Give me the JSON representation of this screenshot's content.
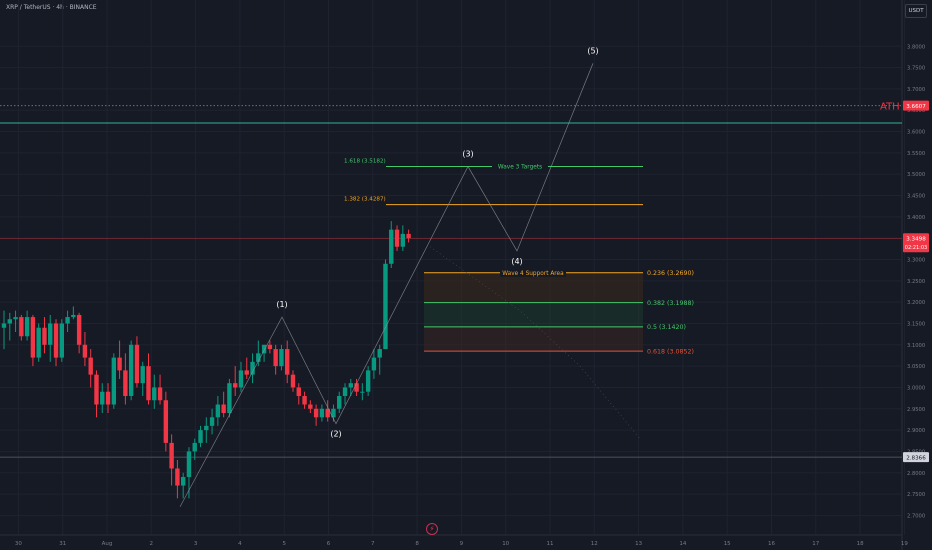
{
  "header": {
    "symbol_line": "XRP / TetherUS · 4h · BINANCE",
    "currency": "USDT"
  },
  "colors": {
    "background": "#161a25",
    "up": "#089981",
    "down": "#f23645",
    "green_line": "#43c96a",
    "orange_line": "#f5a623",
    "red_line": "#e0533a",
    "ath_line": "#2fb39a",
    "axis_text": "#787b86"
  },
  "chart_data": {
    "type": "candlestick",
    "ylim": [
      2.68,
      3.84
    ],
    "y_ticks": [
      "2.7000",
      "2.7500",
      "2.8000",
      "2.8500",
      "2.9000",
      "2.9500",
      "3.0000",
      "3.0500",
      "3.1000",
      "3.1500",
      "3.2000",
      "3.2500",
      "3.3000",
      "3.3500",
      "3.4000",
      "3.4500",
      "3.5000",
      "3.5500",
      "3.6000",
      "3.6500",
      "3.7000",
      "3.7500",
      "3.8000"
    ],
    "x_ticks": [
      "30",
      "31",
      "Aug",
      "2",
      "3",
      "4",
      "5",
      "6",
      "7",
      "8",
      "9",
      "10",
      "11",
      "12",
      "13",
      "14",
      "15",
      "16",
      "17",
      "18",
      "19"
    ],
    "candles": [
      {
        "o": 3.14,
        "h": 3.18,
        "l": 3.09,
        "c": 3.15
      },
      {
        "o": 3.15,
        "h": 3.175,
        "l": 3.11,
        "c": 3.16
      },
      {
        "o": 3.16,
        "h": 3.18,
        "l": 3.13,
        "c": 3.165
      },
      {
        "o": 3.165,
        "h": 3.17,
        "l": 3.11,
        "c": 3.12
      },
      {
        "o": 3.12,
        "h": 3.18,
        "l": 3.11,
        "c": 3.165
      },
      {
        "o": 3.165,
        "h": 3.17,
        "l": 3.05,
        "c": 3.07
      },
      {
        "o": 3.07,
        "h": 3.15,
        "l": 3.06,
        "c": 3.14
      },
      {
        "o": 3.14,
        "h": 3.165,
        "l": 3.08,
        "c": 3.1
      },
      {
        "o": 3.1,
        "h": 3.17,
        "l": 3.06,
        "c": 3.15
      },
      {
        "o": 3.15,
        "h": 3.16,
        "l": 3.05,
        "c": 3.07
      },
      {
        "o": 3.07,
        "h": 3.16,
        "l": 3.06,
        "c": 3.15
      },
      {
        "o": 3.15,
        "h": 3.18,
        "l": 3.13,
        "c": 3.165
      },
      {
        "o": 3.165,
        "h": 3.19,
        "l": 3.16,
        "c": 3.17
      },
      {
        "o": 3.17,
        "h": 3.175,
        "l": 3.08,
        "c": 3.1
      },
      {
        "o": 3.1,
        "h": 3.13,
        "l": 3.05,
        "c": 3.07
      },
      {
        "o": 3.07,
        "h": 3.09,
        "l": 3.0,
        "c": 3.03
      },
      {
        "o": 3.03,
        "h": 3.04,
        "l": 2.93,
        "c": 2.96
      },
      {
        "o": 2.96,
        "h": 3.01,
        "l": 2.94,
        "c": 2.99
      },
      {
        "o": 2.99,
        "h": 3.01,
        "l": 2.94,
        "c": 2.96
      },
      {
        "o": 2.96,
        "h": 3.08,
        "l": 2.95,
        "c": 3.07
      },
      {
        "o": 3.07,
        "h": 3.11,
        "l": 3.02,
        "c": 3.04
      },
      {
        "o": 3.04,
        "h": 3.08,
        "l": 2.96,
        "c": 2.98
      },
      {
        "o": 2.98,
        "h": 3.11,
        "l": 2.97,
        "c": 3.1
      },
      {
        "o": 3.1,
        "h": 3.12,
        "l": 3.0,
        "c": 3.01
      },
      {
        "o": 3.01,
        "h": 3.06,
        "l": 2.98,
        "c": 3.05
      },
      {
        "o": 3.05,
        "h": 3.08,
        "l": 2.96,
        "c": 2.97
      },
      {
        "o": 2.97,
        "h": 3.03,
        "l": 2.95,
        "c": 3.0
      },
      {
        "o": 3.0,
        "h": 3.03,
        "l": 2.96,
        "c": 2.97
      },
      {
        "o": 2.97,
        "h": 2.99,
        "l": 2.85,
        "c": 2.87
      },
      {
        "o": 2.87,
        "h": 2.89,
        "l": 2.77,
        "c": 2.81
      },
      {
        "o": 2.81,
        "h": 2.83,
        "l": 2.74,
        "c": 2.77
      },
      {
        "o": 2.77,
        "h": 2.8,
        "l": 2.74,
        "c": 2.79
      },
      {
        "o": 2.79,
        "h": 2.86,
        "l": 2.74,
        "c": 2.85
      },
      {
        "o": 2.85,
        "h": 2.88,
        "l": 2.83,
        "c": 2.87
      },
      {
        "o": 2.87,
        "h": 2.91,
        "l": 2.86,
        "c": 2.9
      },
      {
        "o": 2.9,
        "h": 2.93,
        "l": 2.87,
        "c": 2.91
      },
      {
        "o": 2.91,
        "h": 2.95,
        "l": 2.89,
        "c": 2.93
      },
      {
        "o": 2.93,
        "h": 2.98,
        "l": 2.91,
        "c": 2.96
      },
      {
        "o": 2.96,
        "h": 2.99,
        "l": 2.93,
        "c": 2.94
      },
      {
        "o": 2.94,
        "h": 3.02,
        "l": 2.93,
        "c": 3.01
      },
      {
        "o": 3.01,
        "h": 3.05,
        "l": 2.98,
        "c": 3.0
      },
      {
        "o": 3.0,
        "h": 3.06,
        "l": 2.99,
        "c": 3.04
      },
      {
        "o": 3.04,
        "h": 3.07,
        "l": 3.02,
        "c": 3.03
      },
      {
        "o": 3.03,
        "h": 3.08,
        "l": 3.01,
        "c": 3.06
      },
      {
        "o": 3.06,
        "h": 3.11,
        "l": 3.05,
        "c": 3.08
      },
      {
        "o": 3.08,
        "h": 3.1,
        "l": 3.06,
        "c": 3.1
      },
      {
        "o": 3.1,
        "h": 3.11,
        "l": 3.08,
        "c": 3.09
      },
      {
        "o": 3.09,
        "h": 3.1,
        "l": 3.03,
        "c": 3.05
      },
      {
        "o": 3.05,
        "h": 3.1,
        "l": 3.04,
        "c": 3.09
      },
      {
        "o": 3.09,
        "h": 3.11,
        "l": 3.01,
        "c": 3.03
      },
      {
        "o": 3.03,
        "h": 3.04,
        "l": 2.99,
        "c": 3.0
      },
      {
        "o": 3.0,
        "h": 3.01,
        "l": 2.96,
        "c": 2.98
      },
      {
        "o": 2.98,
        "h": 2.99,
        "l": 2.95,
        "c": 2.96
      },
      {
        "o": 2.96,
        "h": 2.97,
        "l": 2.94,
        "c": 2.95
      },
      {
        "o": 2.95,
        "h": 2.96,
        "l": 2.91,
        "c": 2.93
      },
      {
        "o": 2.93,
        "h": 2.96,
        "l": 2.92,
        "c": 2.95
      },
      {
        "o": 2.95,
        "h": 2.97,
        "l": 2.92,
        "c": 2.93
      },
      {
        "o": 2.93,
        "h": 2.96,
        "l": 2.92,
        "c": 2.95
      },
      {
        "o": 2.95,
        "h": 2.99,
        "l": 2.94,
        "c": 2.98
      },
      {
        "o": 2.98,
        "h": 3.01,
        "l": 2.96,
        "c": 3.0
      },
      {
        "o": 3.0,
        "h": 3.02,
        "l": 2.98,
        "c": 3.01
      },
      {
        "o": 3.01,
        "h": 3.02,
        "l": 2.98,
        "c": 2.99
      },
      {
        "o": 2.99,
        "h": 3.01,
        "l": 2.97,
        "c": 2.99
      },
      {
        "o": 2.99,
        "h": 3.05,
        "l": 2.98,
        "c": 3.04
      },
      {
        "o": 3.04,
        "h": 3.09,
        "l": 3.02,
        "c": 3.07
      },
      {
        "o": 3.07,
        "h": 3.1,
        "l": 3.03,
        "c": 3.09
      },
      {
        "o": 3.09,
        "h": 3.3,
        "l": 3.09,
        "c": 3.29
      },
      {
        "o": 3.29,
        "h": 3.39,
        "l": 3.28,
        "c": 3.37
      },
      {
        "o": 3.37,
        "h": 3.38,
        "l": 3.32,
        "c": 3.33
      },
      {
        "o": 3.33,
        "h": 3.38,
        "l": 3.32,
        "c": 3.36
      },
      {
        "o": 3.36,
        "h": 3.37,
        "l": 3.34,
        "c": 3.35
      }
    ],
    "current_price": {
      "price": 3.3498,
      "label": "3.3498",
      "countdown": "02:21:03"
    },
    "ath": {
      "price": 3.6607,
      "label": "3.6607",
      "text": "ATH"
    },
    "support": {
      "price": 2.8366,
      "label": "2.8366"
    },
    "green_level": {
      "price": 3.62
    },
    "fib_levels": [
      {
        "ratio": "0.236",
        "price": 3.269,
        "label": "0.236 (3.2690)",
        "color": "orange"
      },
      {
        "ratio": "0.382",
        "price": 3.1988,
        "label": "0.382 (3.1988)",
        "color": "green"
      },
      {
        "ratio": "0.5",
        "price": 3.142,
        "label": "0.5 (3.1420)",
        "color": "green"
      },
      {
        "ratio": "0.618",
        "price": 3.0852,
        "label": "0.618 (3.0852)",
        "color": "red"
      }
    ],
    "target_levels": [
      {
        "price": 3.5182,
        "label": "1.618 (3.5182)",
        "color": "green"
      },
      {
        "price": 3.4287,
        "label": "1.382 (3.4287)",
        "color": "orange"
      }
    ],
    "zone_labels": {
      "wave3": "Wave 3 Targets",
      "wave4": "Wave 4 Support Area"
    },
    "waves": [
      {
        "label": "(1)",
        "price": 3.165,
        "pos": "above"
      },
      {
        "label": "(2)",
        "price": 2.915,
        "pos": "below"
      },
      {
        "label": "(3)",
        "price": 3.518,
        "pos": "above"
      },
      {
        "label": "(4)",
        "price": 3.32,
        "pos": "below"
      },
      {
        "label": "(5)",
        "price": 3.76,
        "pos": "above"
      }
    ]
  }
}
